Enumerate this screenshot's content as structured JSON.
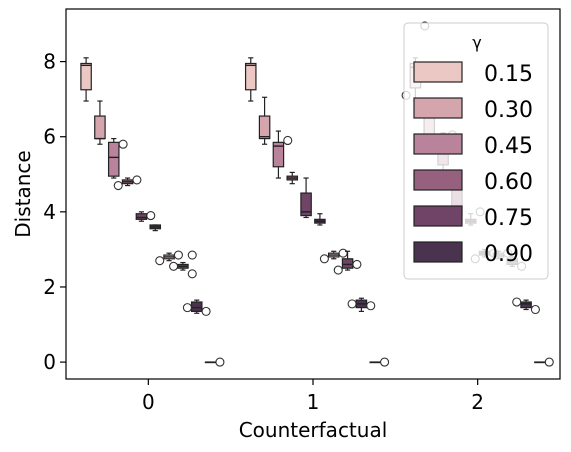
{
  "chart_data": {
    "type": "boxplot",
    "title": "",
    "xlabel": "Counterfactual",
    "ylabel": "Distance",
    "categories": [
      "0",
      "1",
      "2"
    ],
    "yticks": [
      0,
      2,
      4,
      6,
      8
    ],
    "ylim": [
      -0.45,
      9.4
    ],
    "grid": false,
    "legend": {
      "title": "γ",
      "placement": "top-right"
    },
    "series": [
      {
        "name": "0.15",
        "color": "#ebc8c4",
        "boxes": [
          {
            "category": "0",
            "min": 6.95,
            "q1": 7.25,
            "median": 7.9,
            "q3": 7.95,
            "max": 8.1,
            "outliers": []
          },
          {
            "category": "1",
            "min": 6.95,
            "q1": 7.25,
            "median": 7.9,
            "q3": 7.95,
            "max": 8.1,
            "outliers": []
          },
          {
            "category": "2",
            "min": 6.95,
            "q1": 7.3,
            "median": 7.85,
            "q3": 7.95,
            "max": 8.1,
            "outliers": [
              8.95,
              7.1
            ]
          }
        ]
      },
      {
        "name": "0.30",
        "color": "#d5a5ae",
        "boxes": [
          {
            "category": "0",
            "min": 5.8,
            "q1": 5.95,
            "median": 5.95,
            "q3": 6.55,
            "max": 6.95,
            "outliers": []
          },
          {
            "category": "1",
            "min": 5.8,
            "q1": 5.95,
            "median": 6.0,
            "q3": 6.55,
            "max": 7.05,
            "outliers": []
          },
          {
            "category": "2",
            "min": 5.85,
            "q1": 5.95,
            "median": 6.0,
            "q3": 6.5,
            "max": 7.0,
            "outliers": []
          }
        ]
      },
      {
        "name": "0.45",
        "color": "#b9839b",
        "boxes": [
          {
            "category": "0",
            "min": 4.9,
            "q1": 4.95,
            "median": 5.45,
            "q3": 5.85,
            "max": 5.95,
            "outliers": [
              5.8
            ]
          },
          {
            "category": "1",
            "min": 4.9,
            "q1": 5.2,
            "median": 5.75,
            "q3": 5.85,
            "max": 6.15,
            "outliers": [
              5.9
            ]
          },
          {
            "category": "2",
            "min": 4.95,
            "q1": 5.25,
            "median": 5.75,
            "q3": 5.85,
            "max": 6.1,
            "outliers": [
              6.05
            ]
          }
        ]
      },
      {
        "name": "0.60",
        "color": "#96617f",
        "boxes": [
          {
            "category": "0",
            "min": 4.7,
            "q1": 4.75,
            "median": 4.8,
            "q3": 4.85,
            "max": 4.9,
            "outliers": [
              4.85,
              4.7
            ]
          },
          {
            "category": "1",
            "min": 4.75,
            "q1": 4.85,
            "median": 4.9,
            "q3": 4.95,
            "max": 5.05,
            "outliers": []
          },
          {
            "category": "2",
            "min": 3.85,
            "q1": 3.9,
            "median": 4.0,
            "q3": 4.6,
            "max": 4.85,
            "outliers": []
          }
        ]
      },
      {
        "name": "0.75",
        "color": "#6f4466",
        "boxes": [
          {
            "category": "0",
            "min": 3.75,
            "q1": 3.8,
            "median": 3.85,
            "q3": 3.95,
            "max": 4.0,
            "outliers": [
              3.9
            ]
          },
          {
            "category": "1",
            "min": 3.85,
            "q1": 3.9,
            "median": 4.0,
            "q3": 4.5,
            "max": 4.9,
            "outliers": []
          },
          {
            "category": "2",
            "min": 3.65,
            "q1": 3.7,
            "median": 3.75,
            "q3": 3.8,
            "max": 3.95,
            "outliers": [
              4.0
            ]
          }
        ]
      },
      {
        "name": "0.90",
        "color": "#49334e",
        "boxes": [
          {
            "category": "0",
            "min": 3.5,
            "q1": 3.55,
            "median": 3.6,
            "q3": 3.65,
            "max": 3.65,
            "outliers": []
          },
          {
            "category": "1",
            "min": 3.65,
            "q1": 3.7,
            "median": 3.75,
            "q3": 3.8,
            "max": 3.95,
            "outliers": []
          },
          {
            "category": "2",
            "min": 2.8,
            "q1": 2.85,
            "median": 2.9,
            "q3": 2.95,
            "max": 3.0,
            "outliers": [
              2.9,
              2.75
            ]
          }
        ]
      }
    ],
    "extra_groups": [
      {
        "note": ""
      }
    ],
    "secondary_series": [
      {
        "color": "#ebc8c4",
        "boxes": [
          {
            "category": "0",
            "min": 2.7,
            "q1": 2.75,
            "median": 2.8,
            "q3": 2.85,
            "max": 2.9,
            "outliers": [
              2.85,
              2.7
            ]
          },
          {
            "category": "1",
            "min": 2.75,
            "q1": 2.8,
            "median": 2.85,
            "q3": 2.9,
            "max": 2.95,
            "outliers": [
              2.9,
              2.75
            ]
          },
          {
            "category": "2",
            "min": 2.75,
            "q1": 2.8,
            "median": 2.85,
            "q3": 2.9,
            "max": 2.95,
            "outliers": [
              2.9
            ]
          }
        ]
      }
    ],
    "groups_detail": [
      {
        "category": "0",
        "offsets_boxes": [
          {
            "color": "#ebc8c4",
            "min": 6.95,
            "q1": 7.25,
            "median": 7.9,
            "q3": 7.95,
            "max": 8.1,
            "outliers": []
          },
          {
            "color": "#d5a5ae",
            "min": 5.8,
            "q1": 5.95,
            "median": 5.95,
            "q3": 6.55,
            "max": 6.95,
            "outliers": []
          },
          {
            "color": "#b9839b",
            "min": 4.9,
            "q1": 4.95,
            "median": 5.45,
            "q3": 5.85,
            "max": 5.95,
            "outliers": [
              5.8
            ]
          },
          {
            "color": "#96617f",
            "min": 4.7,
            "q1": 4.75,
            "median": 4.8,
            "q3": 4.85,
            "max": 4.9,
            "outliers": [
              4.85,
              4.7
            ]
          },
          {
            "color": "#96617f",
            "min": 3.75,
            "q1": 3.8,
            "median": 3.85,
            "q3": 3.95,
            "max": 4.0,
            "outliers": [
              3.9
            ]
          },
          {
            "color": "#6f4466",
            "min": 3.5,
            "q1": 3.55,
            "median": 3.6,
            "q3": 3.65,
            "max": 3.65,
            "outliers": []
          },
          {
            "color": "#ebc8c4",
            "min": 2.7,
            "q1": 2.75,
            "median": 2.8,
            "q3": 2.85,
            "max": 2.9,
            "outliers": [
              2.85,
              2.7
            ]
          },
          {
            "color": "#6f4466",
            "min": 2.45,
            "q1": 2.5,
            "median": 2.55,
            "q3": 2.6,
            "max": 2.65,
            "outliers": [
              2.85,
              2.55,
              2.35
            ]
          },
          {
            "color": "#49334e",
            "min": 1.3,
            "q1": 1.35,
            "median": 1.45,
            "q3": 1.6,
            "max": 1.65,
            "outliers": [
              1.35,
              1.45
            ]
          },
          {
            "color": "#49334e",
            "min": 0.0,
            "q1": 0.0,
            "median": 0.0,
            "q3": 0.0,
            "max": 0.0,
            "outliers": [
              0.0
            ]
          }
        ]
      }
    ]
  }
}
